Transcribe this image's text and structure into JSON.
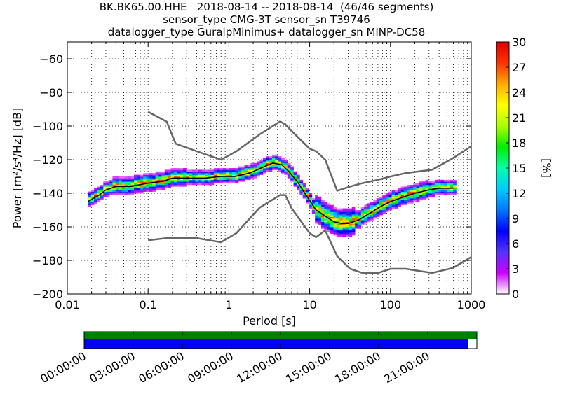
{
  "title": {
    "line1": "BK.BK65.00.HHE   2018-08-14 -- 2018-08-14  (46/46 segments)",
    "line2": "sensor_type CMG-3T sensor_sn T39746",
    "line3": "datalogger_type GuralpMinimus+ datalogger_sn MINP-DC58"
  },
  "chart_data": {
    "type": "heatmap",
    "xlabel": "Period [s]",
    "ylabel": "Power [m²/s⁴/Hz] [dB]",
    "x_scale": "log",
    "xlim": [
      0.01,
      1000
    ],
    "ylim": [
      -200,
      -50
    ],
    "x_ticks": [
      0.01,
      0.1,
      1,
      10,
      100,
      1000
    ],
    "x_tick_labels": [
      "0.01",
      "0.1",
      "1",
      "10",
      "100",
      "1000"
    ],
    "y_ticks": [
      -200,
      -180,
      -160,
      -140,
      -120,
      -100,
      -80,
      -60
    ],
    "y_tick_labels": [
      "−200",
      "−180",
      "−160",
      "−140",
      "−120",
      "−100",
      "−80",
      "−60"
    ],
    "grid": true,
    "colorbar": {
      "label": "[%]",
      "range": [
        0,
        30
      ],
      "ticks": [
        0,
        3,
        6,
        9,
        12,
        15,
        18,
        21,
        24,
        27,
        30
      ],
      "colormap": [
        "#ffffff",
        "#cc00ff",
        "#5533ff",
        "#0000ff",
        "#0077ff",
        "#00ccff",
        "#00ffaa",
        "#00ee00",
        "#aaff00",
        "#ffff00",
        "#ffaa00",
        "#ff3300",
        "#dd0000"
      ]
    },
    "mean_curve": {
      "color": "#000000",
      "period": [
        0.018,
        0.025,
        0.03,
        0.04,
        0.06,
        0.1,
        0.15,
        0.2,
        0.3,
        0.5,
        0.8,
        1.2,
        1.8,
        2.5,
        3.5,
        4.5,
        5.5,
        7,
        9,
        12,
        16,
        20,
        25,
        30,
        40,
        55,
        75,
        100,
        150,
        200,
        300,
        400,
        600
      ],
      "power": [
        -145,
        -141,
        -138,
        -136,
        -136,
        -134,
        -133,
        -131,
        -131,
        -131,
        -130,
        -130,
        -128,
        -125,
        -122,
        -123,
        -127,
        -133,
        -141,
        -150,
        -154,
        -157,
        -158,
        -158,
        -156,
        -152,
        -148,
        -145,
        -142,
        -140,
        -138,
        -137,
        -137
      ]
    },
    "noise_models": [
      {
        "name": "NHNM",
        "color": "#666666",
        "period": [
          0.1,
          0.17,
          0.22,
          0.4,
          0.8,
          1.24,
          2.4,
          4.3,
          5,
          6,
          10,
          12,
          15.6,
          21.9,
          31.6,
          45,
          70,
          101,
          154,
          328,
          600,
          1000
        ],
        "power": [
          -91.5,
          -97.4,
          -110.5,
          -115,
          -120,
          -115,
          -105,
          -97.3,
          -99,
          -103,
          -113.5,
          -115,
          -120,
          -138.5,
          -136,
          -134,
          -132,
          -130,
          -128,
          -126,
          -119,
          -112
        ]
      },
      {
        "name": "NLNM",
        "color": "#666666",
        "period": [
          0.1,
          0.17,
          0.4,
          0.8,
          1.24,
          2.4,
          4.3,
          5,
          6,
          10,
          12,
          15.6,
          21.9,
          31.6,
          45,
          70,
          101,
          154,
          328,
          600,
          1000
        ],
        "power": [
          -168,
          -166.7,
          -166.7,
          -169.2,
          -163.7,
          -148.6,
          -141.1,
          -141.1,
          -149,
          -163.8,
          -166.2,
          -162.1,
          -177.5,
          -185,
          -187.5,
          -187.5,
          -185,
          -185,
          -187.5,
          -184.4,
          -178
        ]
      }
    ],
    "time_coverage": {
      "tick_labels": [
        "00:00:00",
        "03:00:00",
        "06:00:00",
        "09:00:00",
        "12:00:00",
        "15:00:00",
        "18:00:00",
        "21:00:00"
      ],
      "segment_color": "#008000",
      "data_color": "#0000ff",
      "segment_fraction": 1.0,
      "data_fraction": 0.978
    }
  }
}
